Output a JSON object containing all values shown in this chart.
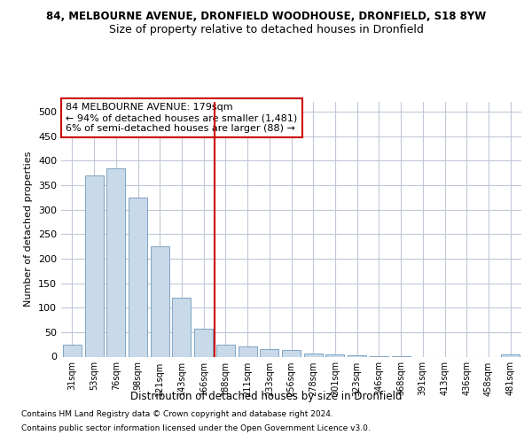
{
  "title_line1": "84, MELBOURNE AVENUE, DRONFIELD WOODHOUSE, DRONFIELD, S18 8YW",
  "title_line2": "Size of property relative to detached houses in Dronfield",
  "xlabel": "Distribution of detached houses by size in Dronfield",
  "ylabel": "Number of detached properties",
  "categories": [
    "31sqm",
    "53sqm",
    "76sqm",
    "98sqm",
    "121sqm",
    "143sqm",
    "166sqm",
    "188sqm",
    "211sqm",
    "233sqm",
    "256sqm",
    "278sqm",
    "301sqm",
    "323sqm",
    "346sqm",
    "368sqm",
    "391sqm",
    "413sqm",
    "436sqm",
    "458sqm",
    "481sqm"
  ],
  "bar_values": [
    25,
    370,
    385,
    325,
    225,
    120,
    57,
    25,
    20,
    16,
    13,
    7,
    4,
    2,
    1,
    1,
    0,
    0,
    0,
    0,
    4
  ],
  "bar_color": "#c8d9ea",
  "bar_edge_color": "#7099bb",
  "highlight_index": 7,
  "highlight_color": "#cc0000",
  "ylim": [
    0,
    520
  ],
  "yticks": [
    0,
    50,
    100,
    150,
    200,
    250,
    300,
    350,
    400,
    450,
    500
  ],
  "annotation_title": "84 MELBOURNE AVENUE: 179sqm",
  "annotation_line2": "← 94% of detached houses are smaller (1,481)",
  "annotation_line3": "6% of semi-detached houses are larger (88) →",
  "footer_line1": "Contains HM Land Registry data © Crown copyright and database right 2024.",
  "footer_line2": "Contains public sector information licensed under the Open Government Licence v3.0.",
  "bg_color": "#ffffff",
  "grid_color": "#c0c8d8",
  "title_fontsize": 8.5,
  "subtitle_fontsize": 9,
  "annotation_box_facecolor": "#ffffff",
  "annotation_box_edge": "#cc0000"
}
